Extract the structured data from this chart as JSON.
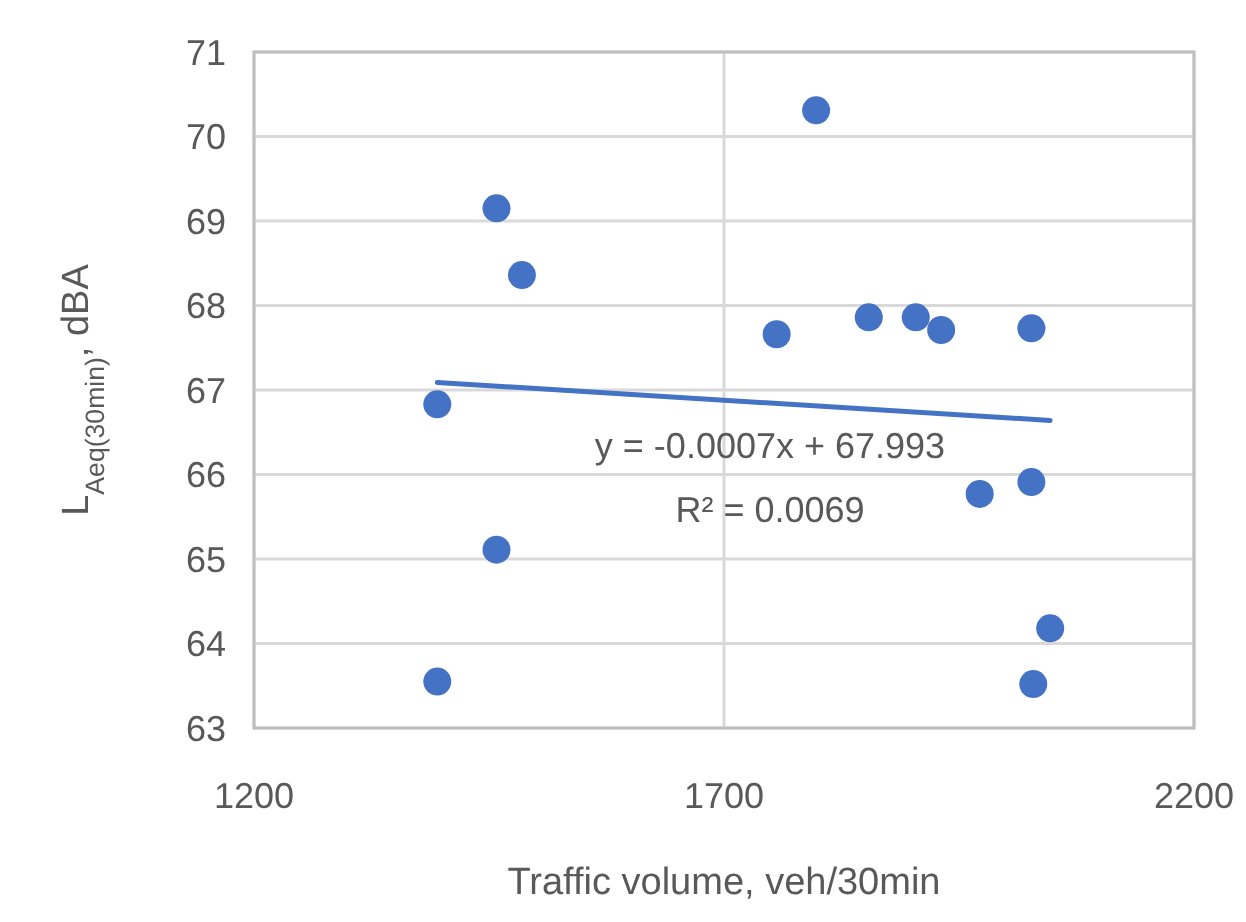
{
  "chart_data": {
    "type": "scatter",
    "xlabel": "Traffic volume, veh/30min",
    "ylabel": "L$_{Aeq(30min)}$, dBA",
    "xlim": [
      1200,
      2200
    ],
    "xticks": [
      1200,
      1700,
      2200
    ],
    "ylim": [
      63,
      71
    ],
    "yticks": [
      63,
      64,
      65,
      66,
      67,
      68,
      69,
      70,
      71
    ],
    "grid": true,
    "series": [
      {
        "marker": "circle",
        "color": "#4472c4",
        "x": [
          1798,
          1458,
          1485,
          1395,
          1458,
          1395,
          1756,
          1854,
          1904,
          1931,
          2027,
          1972,
          2027,
          2047,
          2029
        ],
        "values": [
          70.31,
          69.15,
          68.36,
          66.83,
          65.11,
          63.55,
          67.66,
          67.86,
          67.86,
          67.71,
          67.73,
          65.77,
          65.91,
          64.18,
          63.52
        ]
      },
      {
        "type": "line",
        "color": "#4472c4",
        "x": [
          1395,
          2047
        ],
        "values": [
          67.09,
          66.64
        ]
      }
    ],
    "annotations": [
      "y = -0.0007x + 67.993",
      "R² = 0.0069"
    ]
  }
}
